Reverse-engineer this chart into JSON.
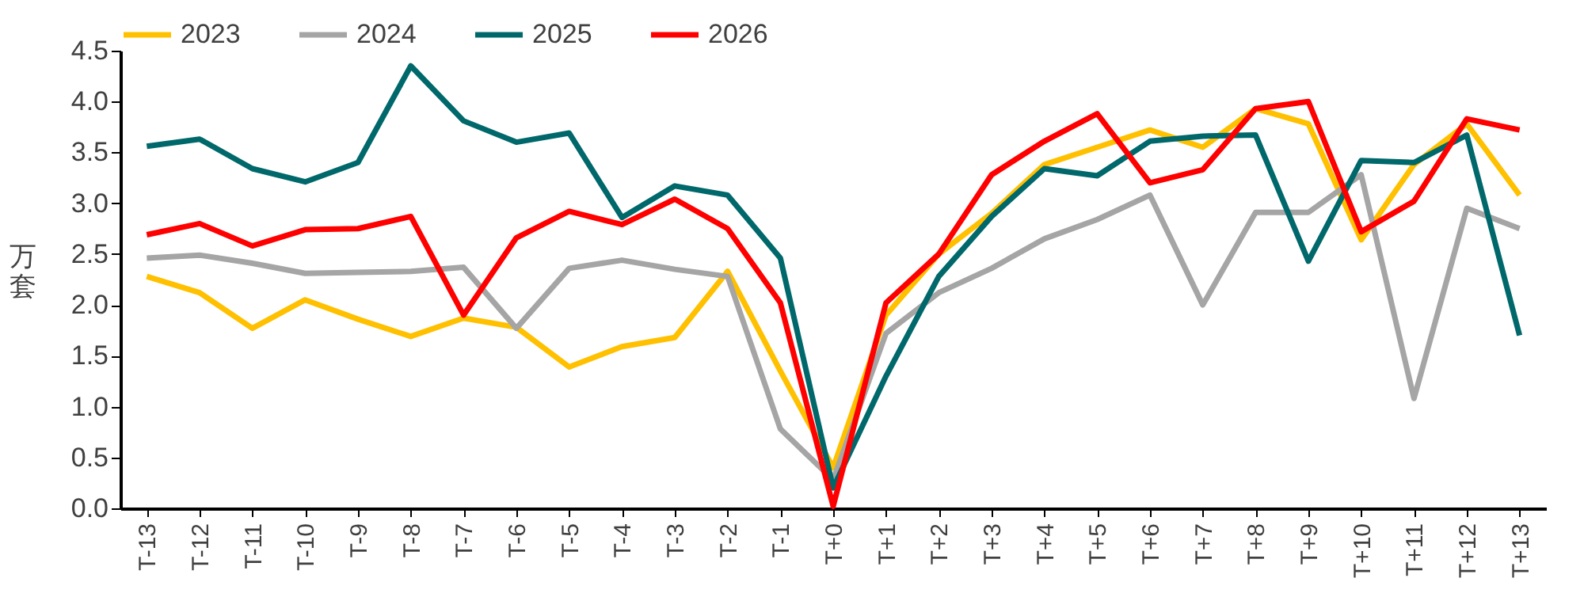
{
  "chart_data": {
    "type": "line",
    "ylabel": "万套",
    "categories": [
      "T-13",
      "T-12",
      "T-11",
      "T-10",
      "T-9",
      "T-8",
      "T-7",
      "T-6",
      "T-5",
      "T-4",
      "T-3",
      "T-2",
      "T-1",
      "T+0",
      "T+1",
      "T+2",
      "T+3",
      "T+4",
      "T+5",
      "T+6",
      "T+7",
      "T+8",
      "T+9",
      "T+10",
      "T+11",
      "T+12",
      "T+13"
    ],
    "ylim": [
      0,
      4.5
    ],
    "yticks": [
      {
        "value": 0,
        "label": "0.0"
      },
      {
        "value": 0.5,
        "label": "0.5"
      },
      {
        "value": 1,
        "label": "1.0"
      },
      {
        "value": 1.5,
        "label": "1.5"
      },
      {
        "value": 2,
        "label": "2.0"
      },
      {
        "value": 2.5,
        "label": "2.5"
      },
      {
        "value": 3,
        "label": "3.0"
      },
      {
        "value": 3.5,
        "label": "3.5"
      },
      {
        "value": 4,
        "label": "4.0"
      },
      {
        "value": 4.5,
        "label": "4.5"
      }
    ],
    "legend": "top",
    "grid": false,
    "marker": "none",
    "series": [
      {
        "name": "2023",
        "color": "#ffc000",
        "values": [
          2.28,
          2.12,
          1.77,
          2.05,
          1.86,
          1.69,
          1.87,
          1.78,
          1.39,
          1.59,
          1.68,
          2.33,
          1.35,
          0.4,
          1.9,
          2.5,
          2.9,
          3.38,
          3.55,
          3.72,
          3.55,
          3.93,
          3.78,
          2.64,
          3.38,
          3.78,
          3.08
        ]
      },
      {
        "name": "2024",
        "color": "#a5a5a5",
        "values": [
          2.46,
          2.49,
          2.41,
          2.31,
          2.32,
          2.33,
          2.37,
          1.77,
          2.36,
          2.44,
          2.35,
          2.28,
          0.78,
          0.28,
          1.72,
          2.12,
          2.36,
          2.65,
          2.84,
          3.08,
          2.0,
          2.91,
          2.91,
          3.28,
          1.08,
          2.95,
          2.75
        ]
      },
      {
        "name": "2025",
        "color": "#00686b",
        "values": [
          3.56,
          3.63,
          3.34,
          3.21,
          3.4,
          4.35,
          3.81,
          3.6,
          3.69,
          2.86,
          3.17,
          3.08,
          2.46,
          0.2,
          1.3,
          2.28,
          2.87,
          3.34,
          3.27,
          3.61,
          3.66,
          3.67,
          2.43,
          3.42,
          3.4,
          3.67,
          1.7
        ]
      },
      {
        "name": "2026",
        "color": "#ff0000",
        "values": [
          2.69,
          2.8,
          2.58,
          2.74,
          2.75,
          2.87,
          1.9,
          2.66,
          2.92,
          2.79,
          3.04,
          2.75,
          2.02,
          0.02,
          2.02,
          2.5,
          3.28,
          3.61,
          3.88,
          3.2,
          3.33,
          3.93,
          4.0,
          2.72,
          3.02,
          3.83,
          3.72
        ]
      }
    ]
  }
}
